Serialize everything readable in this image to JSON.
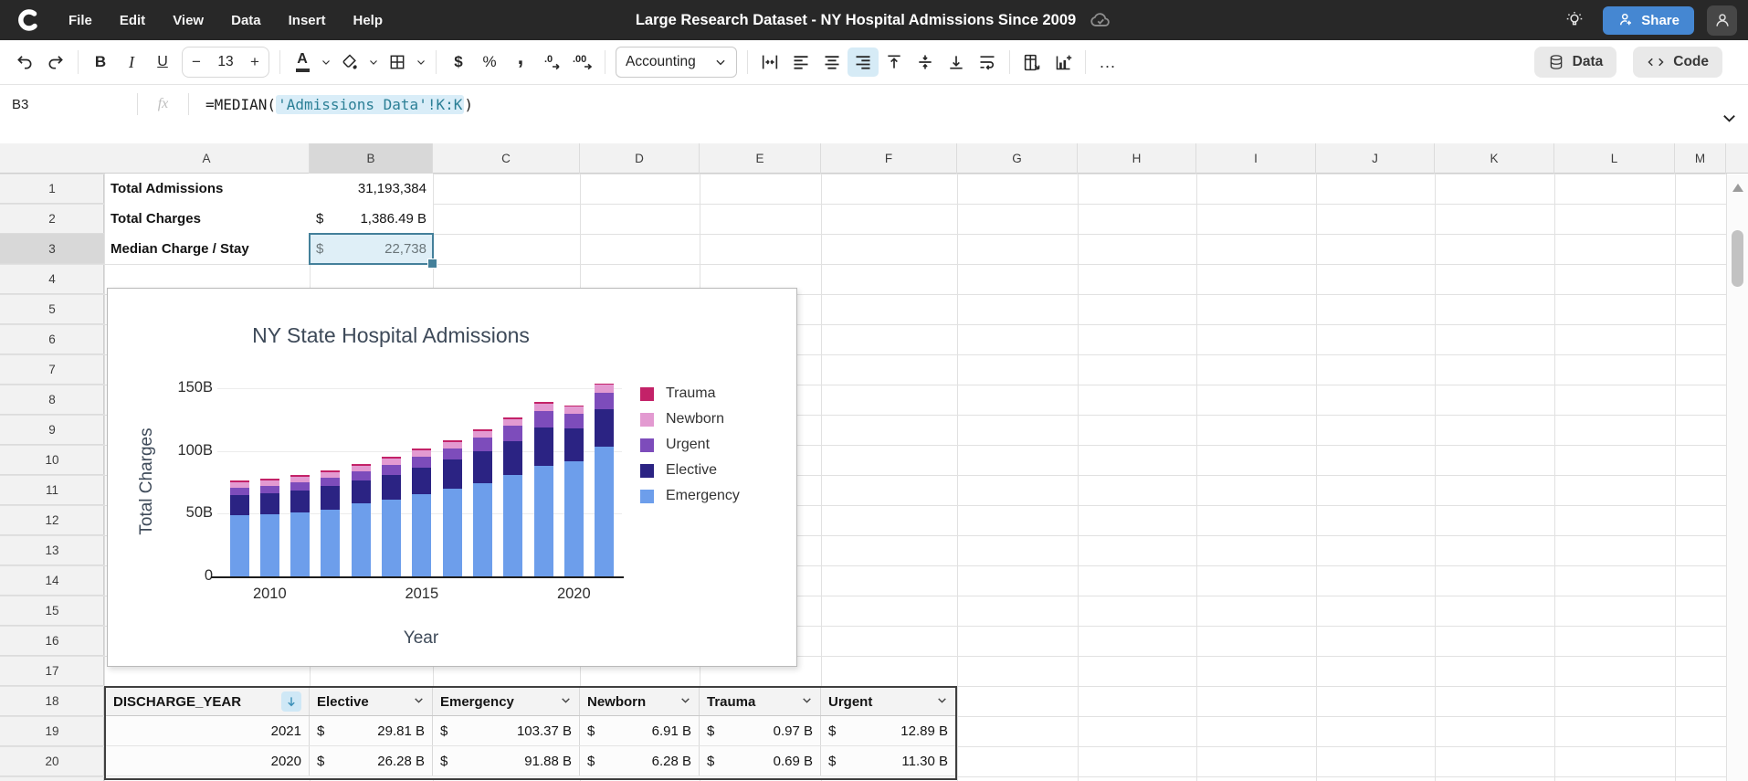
{
  "app": {
    "menu": [
      "File",
      "Edit",
      "View",
      "Data",
      "Insert",
      "Help"
    ],
    "title": "Large Research Dataset - NY Hospital Admissions Since 2009",
    "share_label": "Share"
  },
  "toolbar": {
    "font_size": "13",
    "format_label": "Accounting",
    "more_label": "...",
    "data_label": "Data",
    "code_label": "Code"
  },
  "formula_bar": {
    "cell_ref": "B3",
    "fx": "fx",
    "formula_prefix": "=MEDIAN(",
    "formula_range": "'Admissions Data'!K:K",
    "formula_suffix": ")"
  },
  "grid": {
    "columns": [
      "A",
      "B",
      "C",
      "D",
      "E",
      "F",
      "G",
      "H",
      "I",
      "J",
      "K",
      "L",
      "M"
    ],
    "rows": [
      "1",
      "2",
      "3",
      "4",
      "5",
      "6",
      "7",
      "8",
      "9",
      "10",
      "11",
      "12",
      "13",
      "14",
      "15",
      "16",
      "17",
      "18",
      "19",
      "20"
    ],
    "selected_column": "B",
    "selected_row": "3"
  },
  "cells": {
    "a1": "Total Admissions",
    "b1": "31,193,384",
    "a2": "Total Charges",
    "b2_symbol": "$",
    "b2_value": "1,386.49 B",
    "a3": "Median Charge / Stay",
    "b3_symbol": "$",
    "b3_value": "22,738"
  },
  "chart_data": {
    "type": "bar",
    "stacked": true,
    "title": "NY State Hospital Admissions",
    "xlabel": "Year",
    "ylabel": "Total Charges",
    "categories": [
      2009,
      2010,
      2011,
      2012,
      2013,
      2014,
      2015,
      2016,
      2017,
      2018,
      2019,
      2020,
      2021
    ],
    "series": [
      {
        "name": "Emergency",
        "color": "#6d9eeb",
        "values": [
          49,
          49.5,
          51,
          53.5,
          58,
          61,
          65.5,
          70,
          74.5,
          81,
          88,
          91.88,
          103.37
        ]
      },
      {
        "name": "Elective",
        "color": "#2b2383",
        "values": [
          16,
          16.5,
          17.5,
          18.5,
          18.5,
          20,
          21.5,
          23,
          25.5,
          27,
          30.5,
          26.28,
          29.81
        ]
      },
      {
        "name": "Urgent",
        "color": "#7d4cbb",
        "values": [
          5.5,
          6,
          6.3,
          6.5,
          7,
          8,
          8.5,
          9,
          10.5,
          12,
          13,
          11.3,
          12.89
        ]
      },
      {
        "name": "Newborn",
        "color": "#e39ad1",
        "values": [
          4.5,
          4.8,
          4.8,
          4.8,
          4.7,
          5,
          5,
          5.2,
          5.2,
          5.5,
          6,
          6.28,
          6.91
        ]
      },
      {
        "name": "Trauma",
        "color": "#c32268",
        "values": [
          1.2,
          1.4,
          1.2,
          1.5,
          1.6,
          1.7,
          1.7,
          1.3,
          1.6,
          1.4,
          1.8,
          0.69,
          0.97
        ]
      }
    ],
    "legend_order": [
      "Trauma",
      "Newborn",
      "Urgent",
      "Elective",
      "Emergency"
    ],
    "legend_position": "right",
    "grid": true,
    "ylim": [
      0,
      150
    ],
    "yticks": [
      {
        "label": "0",
        "value": 0
      },
      {
        "label": "50B",
        "value": 50
      },
      {
        "label": "100B",
        "value": 100
      },
      {
        "label": "150B",
        "value": 150
      }
    ],
    "xticks": [
      {
        "label": "2010",
        "category_index": 1
      },
      {
        "label": "2015",
        "category_index": 6
      },
      {
        "label": "2020",
        "category_index": 11
      }
    ]
  },
  "data_table": {
    "headers": [
      "DISCHARGE_YEAR",
      "Elective",
      "Emergency",
      "Newborn",
      "Trauma",
      "Urgent"
    ],
    "sorted_column": "DISCHARGE_YEAR",
    "currency": "$",
    "rows": [
      {
        "year": "2021",
        "values": [
          "29.81 B",
          "103.37 B",
          "6.91 B",
          "0.97 B",
          "12.89 B"
        ]
      },
      {
        "year": "2020",
        "values": [
          "26.28 B",
          "91.88 B",
          "6.28 B",
          "0.69 B",
          "11.30 B"
        ]
      }
    ]
  }
}
